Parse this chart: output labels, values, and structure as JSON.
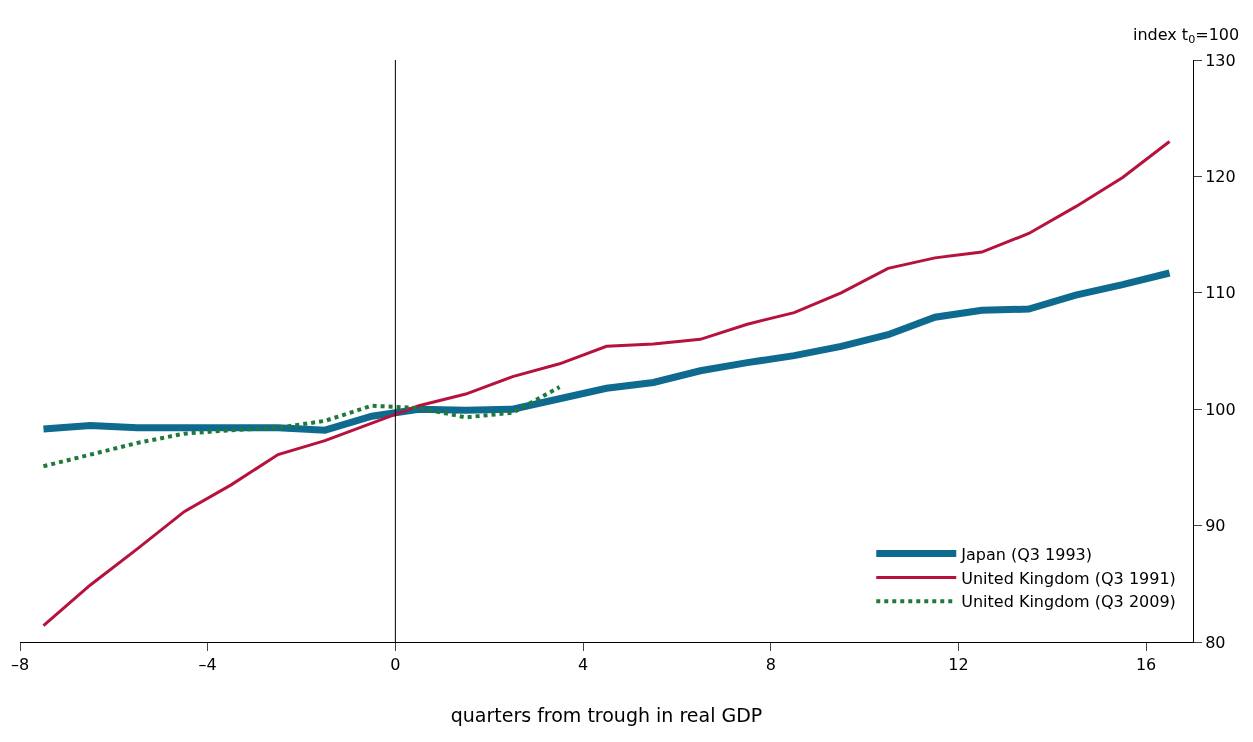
{
  "chart_data": {
    "type": "line",
    "xlabel": "quarters from trough in real GDP",
    "ylabel": "index t$_{0}$=100",
    "xlim": [
      -8,
      17
    ],
    "xticks": [
      {
        "value": -8,
        "label": "–8"
      },
      {
        "value": -4,
        "label": "–4"
      },
      0,
      4,
      8,
      12,
      16
    ],
    "ylim": [
      80,
      130
    ],
    "yticks": [
      80,
      90,
      100,
      110,
      120,
      130
    ],
    "legend": "bottom right",
    "marker": "none",
    "ref_lines": [
      {
        "axis": "x",
        "value": 0,
        "color": "#000000",
        "line_style": "solid"
      }
    ],
    "series": [
      {
        "name": "Japan (Q3 1993)",
        "color": "#0f6a8f",
        "line_style": "solid",
        "x": [
          -7.5,
          -6.5,
          -5.5,
          -4.5,
          -3.5,
          -2.5,
          -1.5,
          -0.5,
          0.5,
          1.5,
          2.5,
          3.5,
          4.5,
          5.5,
          6.5,
          7.5,
          8.5,
          9.5,
          10.5,
          11.5,
          12.5,
          13.5,
          14.5,
          15.5,
          16.5
        ],
        "values": [
          98.3,
          98.6,
          98.4,
          98.4,
          98.4,
          98.4,
          98.2,
          99.4,
          100.0,
          99.9,
          100.0,
          100.9,
          101.8,
          102.3,
          103.3,
          104.0,
          104.6,
          105.4,
          106.4,
          107.9,
          108.5,
          108.6,
          109.8,
          110.7,
          111.7
        ]
      },
      {
        "name": "United Kingdom (Q3 1991)",
        "color": "#b5123e",
        "line_style": "solid",
        "x": [
          -7.5,
          -6.5,
          -5.5,
          -4.5,
          -3.5,
          -2.5,
          -1.5,
          -0.5,
          0.5,
          1.5,
          2.5,
          3.5,
          4.5,
          5.5,
          6.5,
          7.5,
          8.5,
          9.5,
          10.5,
          11.5,
          12.5,
          13.5,
          14.5,
          15.5,
          16.5
        ],
        "values": [
          81.4,
          84.9,
          88.0,
          91.2,
          93.5,
          96.1,
          97.3,
          98.8,
          100.3,
          101.3,
          102.8,
          103.9,
          105.4,
          105.6,
          106.0,
          107.3,
          108.3,
          110.0,
          112.1,
          113.0,
          113.5,
          115.1,
          117.4,
          119.9,
          123.0
        ]
      },
      {
        "name": "United Kingdom (Q3 2009)",
        "color": "#1e7a3c",
        "line_style": "dotted",
        "x": [
          -7.5,
          -6.5,
          -5.5,
          -4.5,
          -3.5,
          -2.5,
          -1.5,
          -0.5,
          0.5,
          1.5,
          2.5,
          3.5
        ],
        "values": [
          95.1,
          96.1,
          97.1,
          97.9,
          98.2,
          98.4,
          99.0,
          100.3,
          100.1,
          99.3,
          99.7,
          101.9
        ]
      }
    ]
  }
}
